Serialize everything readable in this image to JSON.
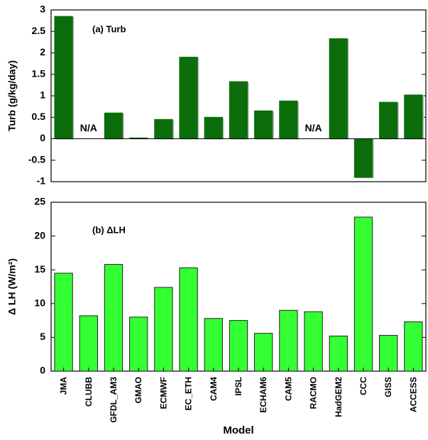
{
  "chart_data": [
    {
      "type": "bar",
      "title": "(a) Turb",
      "ylabel": "Turb (g/kg/day)",
      "color": "#0b6e0b",
      "values": [
        2.85,
        null,
        0.6,
        0.02,
        0.45,
        1.9,
        0.5,
        1.33,
        0.65,
        0.88,
        null,
        2.33,
        -0.9,
        0.85,
        1.02
      ],
      "value_labels": [
        null,
        "N/A",
        null,
        null,
        null,
        null,
        null,
        null,
        null,
        null,
        "N/A",
        null,
        null,
        null,
        null
      ],
      "ylim": [
        -1,
        3
      ],
      "yticks": [
        -1,
        -0.5,
        0,
        0.5,
        1,
        1.5,
        2,
        2.5,
        3
      ]
    },
    {
      "type": "bar",
      "title": "(b) ΔLH",
      "ylabel": "Δ LH (W/m²)",
      "xlabel": "Model",
      "color": "#33ff33",
      "categories": [
        "JMA",
        "CLUBB",
        "GFDL_AM3",
        "GMAO",
        "ECMWF",
        "EC_ETH",
        "CAM4",
        "IPSL",
        "ECHAM6",
        "CAM5",
        "RACMO",
        "HadGEM2",
        "CCC",
        "GISS",
        "ACCESS"
      ],
      "values": [
        14.5,
        8.2,
        15.8,
        8.0,
        12.4,
        15.3,
        7.8,
        7.5,
        5.6,
        9.0,
        8.8,
        5.2,
        22.8,
        5.3,
        7.3
      ],
      "ylim": [
        0,
        25
      ],
      "yticks": [
        0,
        5,
        10,
        15,
        20,
        25
      ]
    }
  ]
}
